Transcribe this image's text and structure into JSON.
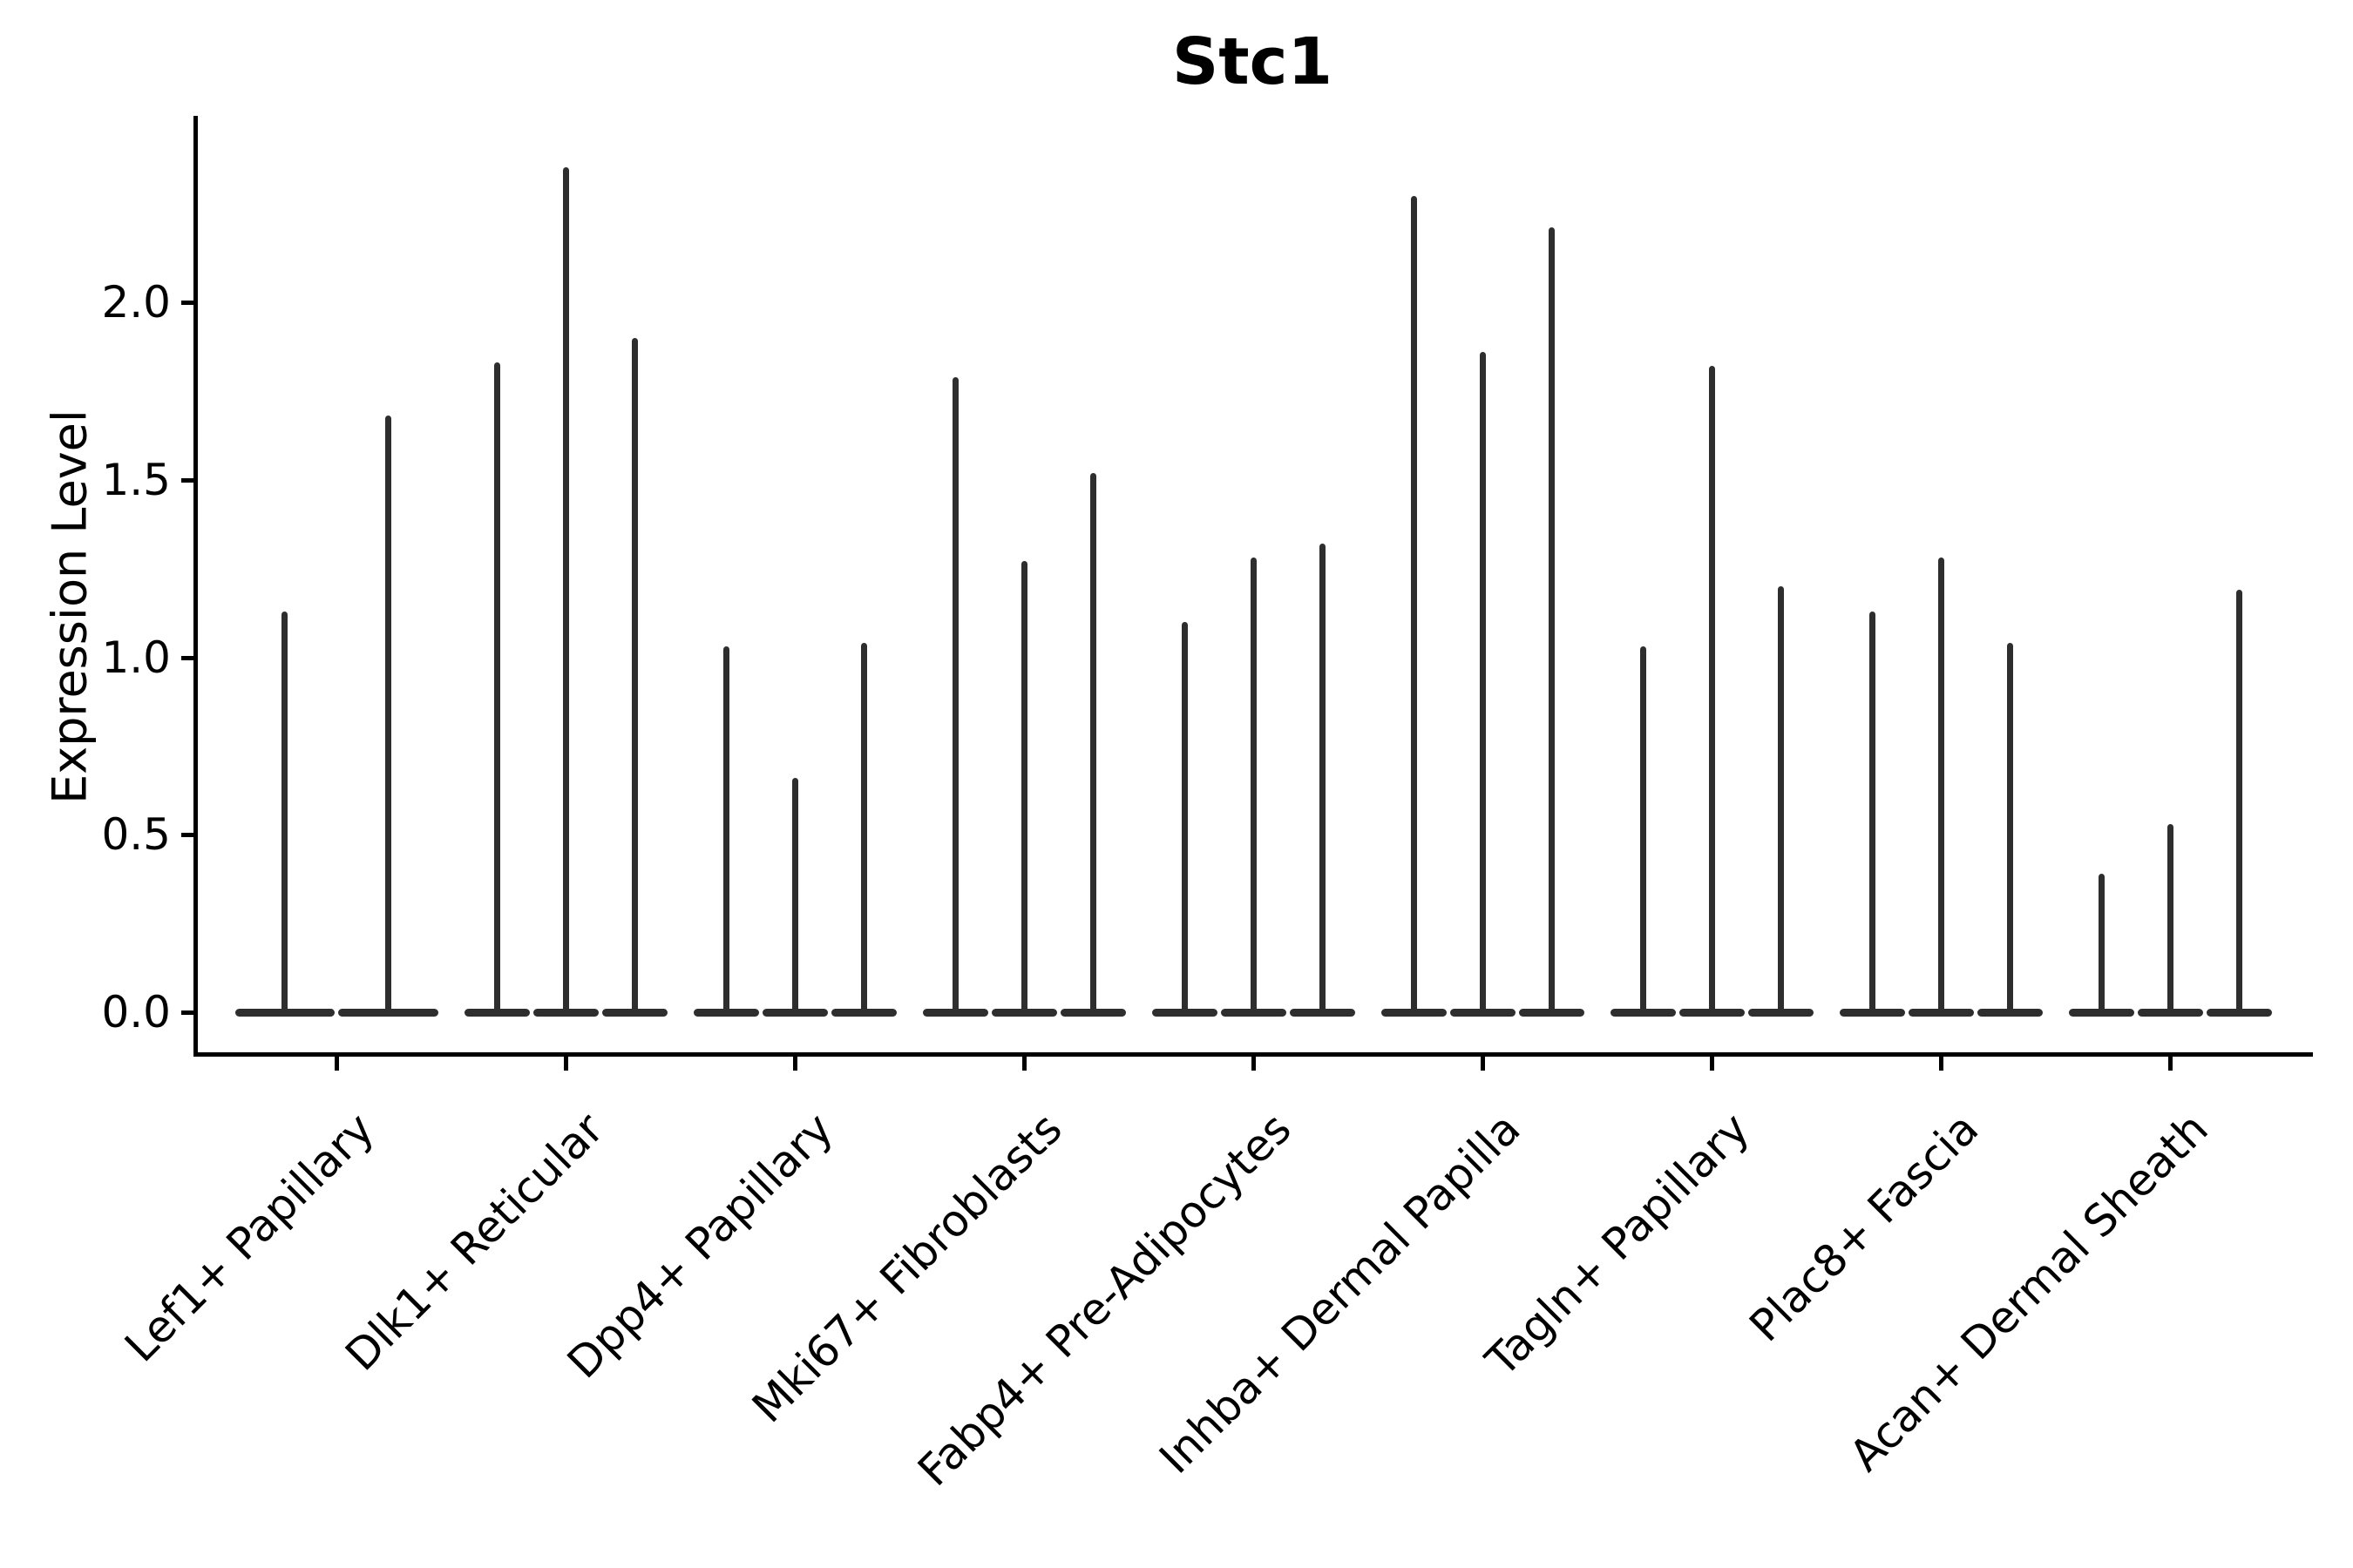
{
  "title": "Stc1",
  "chart_data": {
    "type": "violin",
    "title": "Stc1",
    "xlabel": "",
    "ylabel": "Expression Level",
    "ylim": [
      -0.11,
      2.52
    ],
    "yticks": [
      0.0,
      0.5,
      1.0,
      1.5,
      2.0
    ],
    "ytick_labels": [
      "0.0",
      "0.5",
      "1.0",
      "1.5",
      "2.0"
    ],
    "grid": false,
    "legend": "none",
    "note": "Single-cell expression violin plot; each cell-type category contains 2-3 very thin spike-like violins whose mass sits at 0 expression; values below are the spike maxima (max expression level) for each violin in left-to-right order.",
    "categories": [
      "Lef1+ Papillary",
      "Dlk1+ Reticular",
      "Dpp4+ Papillary",
      "Mki67+ Fibroblasts",
      "Fabp4+ Pre-Adipocytes",
      "Inhba+ Dermal Papilla",
      "Tagln+ Papillary",
      "Plac8+ Fascia",
      "Acan+ Dermal Sheath"
    ],
    "violin_max_values": [
      [
        1.13,
        1.68
      ],
      [
        1.83,
        2.38,
        1.9
      ],
      [
        1.03,
        0.66,
        1.04
      ],
      [
        1.79,
        1.27,
        1.52
      ],
      [
        1.1,
        1.28,
        1.32
      ],
      [
        2.3,
        1.86,
        2.21
      ],
      [
        1.03,
        1.82,
        1.2
      ],
      [
        1.13,
        1.28,
        1.04
      ],
      [
        0.39,
        0.53,
        1.19
      ]
    ],
    "violin_baseline_value": 0.0,
    "violin_color": "#2e2e2e",
    "axis_color": "#000000"
  }
}
